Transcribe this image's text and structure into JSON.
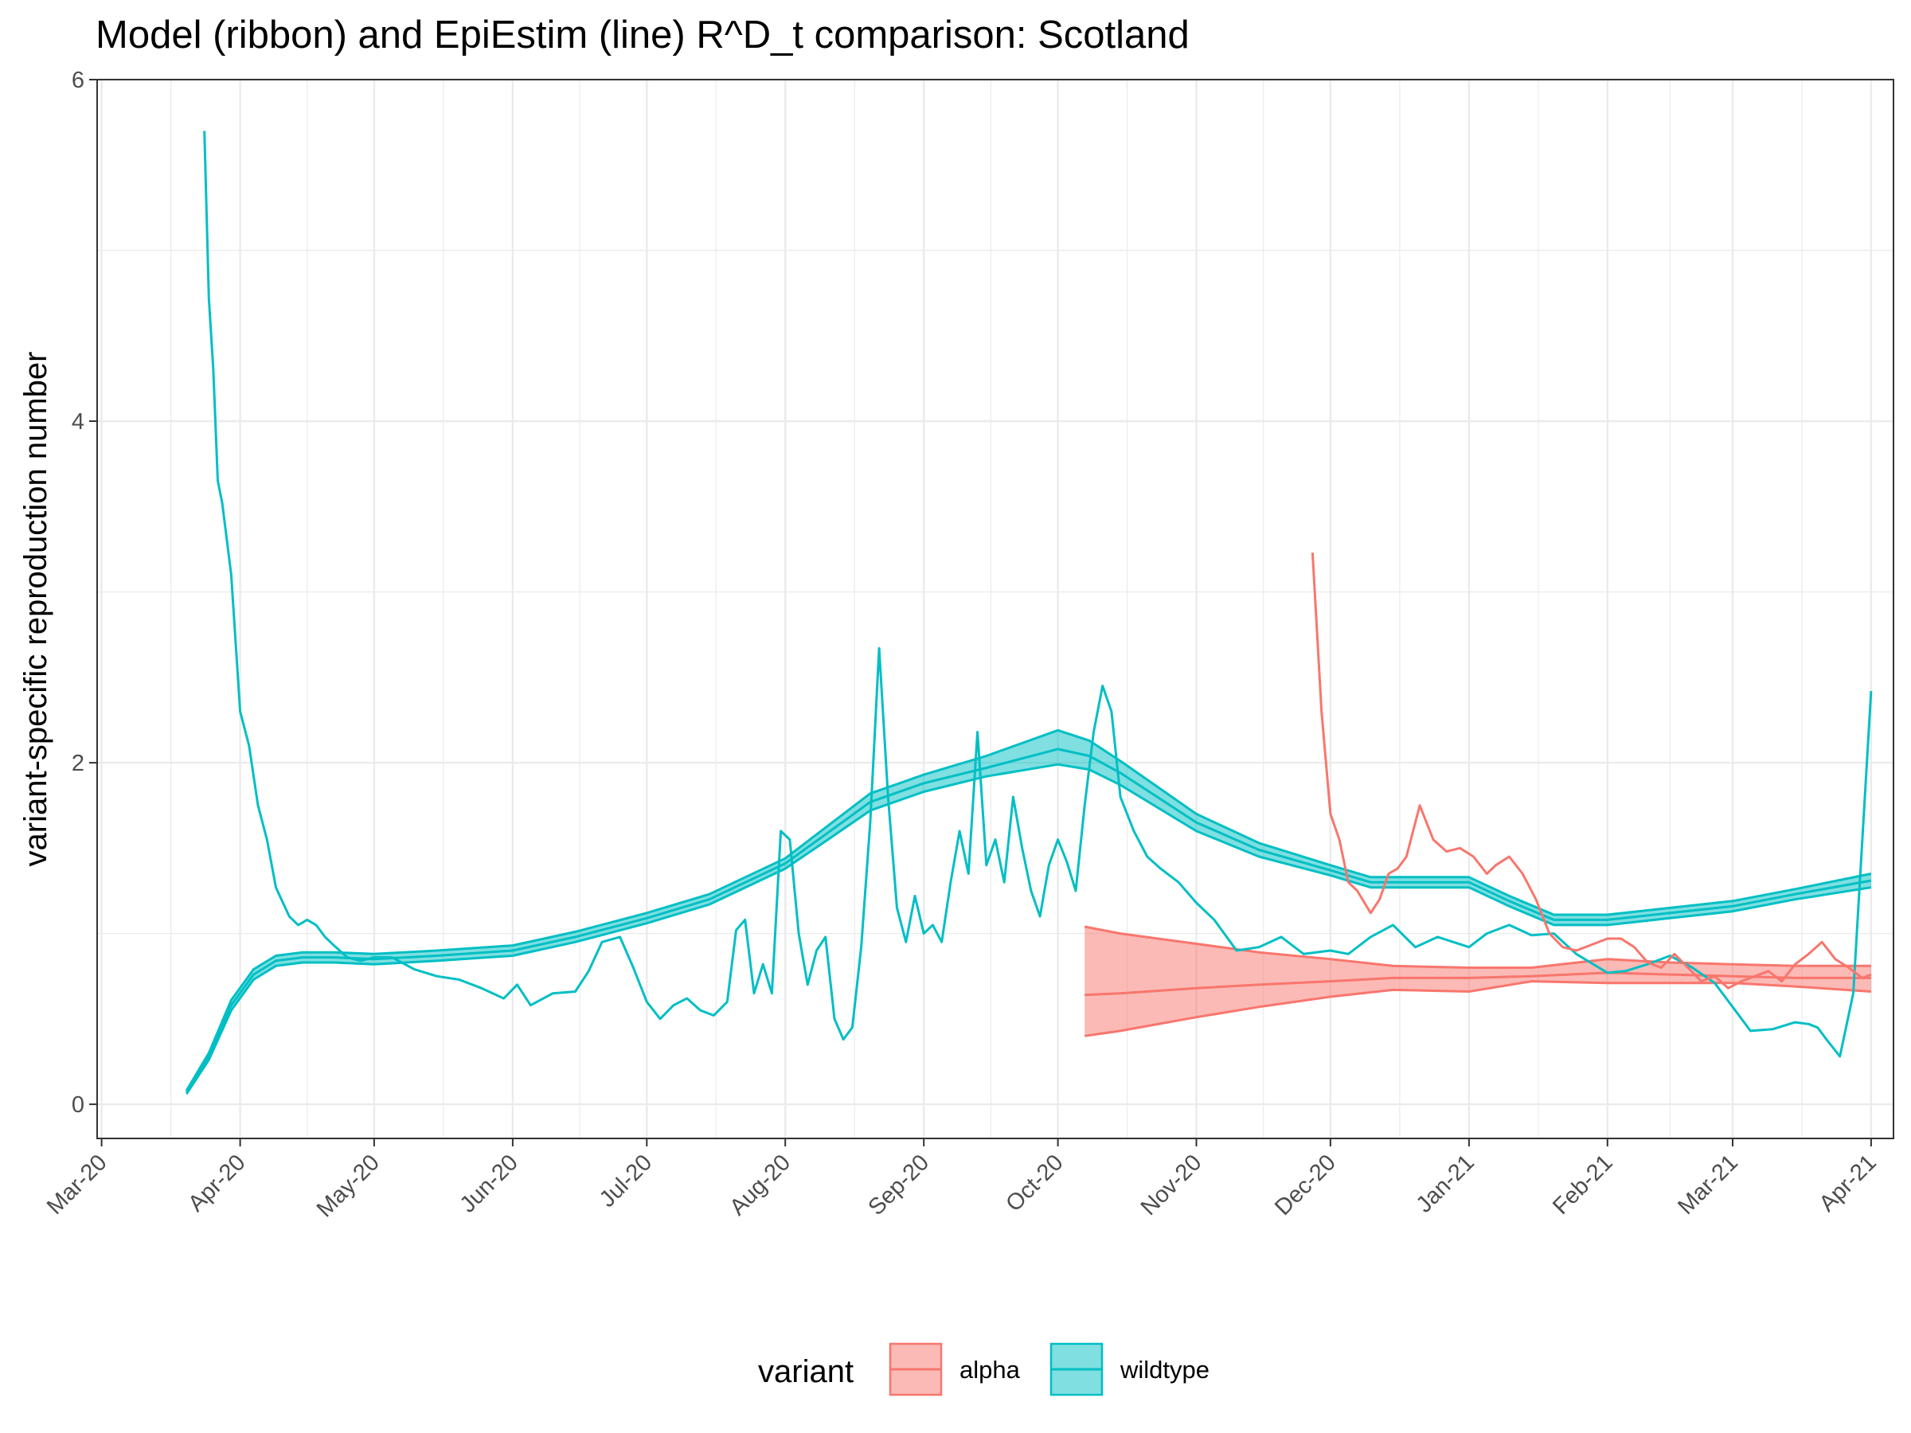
{
  "chart_data": {
    "type": "line",
    "title": "Model (ribbon) and EpiEstim (line) R^D_t comparison: Scotland",
    "xlabel": "",
    "ylabel": "variant-specific reproduction number",
    "x_start": "2020-03-01",
    "x_end": "2021-04-01",
    "xlim": [
      "2020-02-29",
      "2021-04-06"
    ],
    "ylim": [
      -0.2,
      6.0
    ],
    "y_ticks": [
      0,
      2,
      4,
      6
    ],
    "y_tick_labels": [
      "0",
      "2",
      "4",
      "6"
    ],
    "x_ticks": [
      "2020-03-01",
      "2020-04-01",
      "2020-05-01",
      "2020-06-01",
      "2020-07-01",
      "2020-08-01",
      "2020-09-01",
      "2020-10-01",
      "2020-11-01",
      "2020-12-01",
      "2021-01-01",
      "2021-02-01",
      "2021-03-01",
      "2021-04-01"
    ],
    "x_tick_labels": [
      "Mar-20",
      "Apr-20",
      "May-20",
      "Jun-20",
      "Jul-20",
      "Aug-20",
      "Sep-20",
      "Oct-20",
      "Nov-20",
      "Dec-20",
      "Jan-21",
      "Feb-21",
      "Mar-21",
      "Apr-21"
    ],
    "grid": true,
    "legend": {
      "title": "variant",
      "position": "bottom",
      "entries": [
        "alpha",
        "wildtype"
      ]
    },
    "series": [
      {
        "name": "wildtype",
        "color": "#00BFC4",
        "ribbon": {
          "x": [
            "2020-03-20",
            "2020-03-25",
            "2020-03-30",
            "2020-04-04",
            "2020-04-09",
            "2020-04-15",
            "2020-04-22",
            "2020-05-01",
            "2020-05-15",
            "2020-06-01",
            "2020-06-15",
            "2020-07-01",
            "2020-07-15",
            "2020-08-01",
            "2020-08-10",
            "2020-08-20",
            "2020-09-01",
            "2020-09-15",
            "2020-10-01",
            "2020-10-08",
            "2020-10-15",
            "2020-11-01",
            "2020-11-15",
            "2020-12-01",
            "2020-12-10",
            "2020-12-20",
            "2021-01-01",
            "2021-01-10",
            "2021-01-20",
            "2021-02-01",
            "2021-02-15",
            "2021-03-01",
            "2021-03-15",
            "2021-04-01"
          ],
          "mid": [
            0.07,
            0.28,
            0.58,
            0.76,
            0.84,
            0.86,
            0.86,
            0.85,
            0.87,
            0.9,
            0.98,
            1.09,
            1.2,
            1.41,
            1.58,
            1.77,
            1.88,
            1.97,
            2.08,
            2.04,
            1.94,
            1.65,
            1.49,
            1.37,
            1.3,
            1.3,
            1.3,
            1.19,
            1.08,
            1.08,
            1.12,
            1.16,
            1.23,
            1.31
          ],
          "lower": [
            0.06,
            0.26,
            0.55,
            0.73,
            0.81,
            0.83,
            0.83,
            0.82,
            0.84,
            0.87,
            0.95,
            1.06,
            1.17,
            1.38,
            1.54,
            1.72,
            1.83,
            1.92,
            1.99,
            1.96,
            1.87,
            1.6,
            1.45,
            1.34,
            1.27,
            1.27,
            1.27,
            1.16,
            1.05,
            1.05,
            1.09,
            1.13,
            1.2,
            1.27
          ],
          "upper": [
            0.08,
            0.3,
            0.61,
            0.79,
            0.87,
            0.89,
            0.89,
            0.88,
            0.9,
            0.93,
            1.01,
            1.12,
            1.23,
            1.44,
            1.62,
            1.82,
            1.93,
            2.04,
            2.19,
            2.13,
            2.01,
            1.7,
            1.53,
            1.4,
            1.33,
            1.33,
            1.33,
            1.22,
            1.11,
            1.11,
            1.15,
            1.19,
            1.26,
            1.35
          ]
        },
        "epiestim": {
          "x": [
            "2020-03-24",
            "2020-03-25",
            "2020-03-26",
            "2020-03-27",
            "2020-03-28",
            "2020-03-30",
            "2020-04-01",
            "2020-04-03",
            "2020-04-05",
            "2020-04-07",
            "2020-04-09",
            "2020-04-12",
            "2020-04-14",
            "2020-04-16",
            "2020-04-18",
            "2020-04-20",
            "2020-04-22",
            "2020-04-25",
            "2020-04-28",
            "2020-05-01",
            "2020-05-05",
            "2020-05-10",
            "2020-05-15",
            "2020-05-20",
            "2020-05-25",
            "2020-05-30",
            "2020-06-02",
            "2020-06-05",
            "2020-06-10",
            "2020-06-15",
            "2020-06-18",
            "2020-06-21",
            "2020-06-25",
            "2020-06-28",
            "2020-07-01",
            "2020-07-04",
            "2020-07-07",
            "2020-07-10",
            "2020-07-13",
            "2020-07-16",
            "2020-07-19",
            "2020-07-21",
            "2020-07-23",
            "2020-07-25",
            "2020-07-27",
            "2020-07-29",
            "2020-07-31",
            "2020-08-02",
            "2020-08-04",
            "2020-08-06",
            "2020-08-08",
            "2020-08-10",
            "2020-08-12",
            "2020-08-14",
            "2020-08-16",
            "2020-08-18",
            "2020-08-20",
            "2020-08-22",
            "2020-08-24",
            "2020-08-26",
            "2020-08-28",
            "2020-08-30",
            "2020-09-01",
            "2020-09-03",
            "2020-09-05",
            "2020-09-07",
            "2020-09-09",
            "2020-09-11",
            "2020-09-13",
            "2020-09-15",
            "2020-09-17",
            "2020-09-19",
            "2020-09-21",
            "2020-09-23",
            "2020-09-25",
            "2020-09-27",
            "2020-09-29",
            "2020-10-01",
            "2020-10-03",
            "2020-10-05",
            "2020-10-07",
            "2020-10-09",
            "2020-10-11",
            "2020-10-13",
            "2020-10-15",
            "2020-10-18",
            "2020-10-21",
            "2020-10-24",
            "2020-10-28",
            "2020-11-01",
            "2020-11-05",
            "2020-11-10",
            "2020-11-15",
            "2020-11-20",
            "2020-11-25",
            "2020-12-01",
            "2020-12-05",
            "2020-12-10",
            "2020-12-15",
            "2020-12-20",
            "2020-12-25",
            "2021-01-01",
            "2021-01-05",
            "2021-01-10",
            "2021-01-15",
            "2021-01-20",
            "2021-01-25",
            "2021-02-01",
            "2021-02-05",
            "2021-02-10",
            "2021-02-15",
            "2021-02-20",
            "2021-02-25",
            "2021-03-01",
            "2021-03-05",
            "2021-03-10",
            "2021-03-15",
            "2021-03-18",
            "2021-03-20",
            "2021-03-22",
            "2021-03-25",
            "2021-03-28",
            "2021-04-01"
          ],
          "y": [
            5.7,
            4.72,
            4.3,
            3.65,
            3.52,
            3.1,
            2.3,
            2.1,
            1.75,
            1.55,
            1.27,
            1.1,
            1.05,
            1.08,
            1.05,
            0.98,
            0.93,
            0.86,
            0.84,
            0.86,
            0.86,
            0.79,
            0.75,
            0.73,
            0.68,
            0.62,
            0.7,
            0.58,
            0.65,
            0.66,
            0.78,
            0.95,
            0.98,
            0.8,
            0.6,
            0.5,
            0.58,
            0.62,
            0.55,
            0.52,
            0.6,
            1.02,
            1.08,
            0.65,
            0.82,
            0.65,
            1.6,
            1.55,
            1.0,
            0.7,
            0.9,
            0.98,
            0.5,
            0.38,
            0.45,
            0.92,
            1.65,
            2.67,
            1.8,
            1.15,
            0.95,
            1.22,
            1.0,
            1.05,
            0.95,
            1.3,
            1.6,
            1.35,
            2.18,
            1.4,
            1.55,
            1.3,
            1.8,
            1.5,
            1.25,
            1.1,
            1.4,
            1.55,
            1.42,
            1.25,
            1.75,
            2.18,
            2.45,
            2.3,
            1.8,
            1.6,
            1.45,
            1.38,
            1.3,
            1.18,
            1.08,
            0.9,
            0.92,
            0.98,
            0.88,
            0.9,
            0.88,
            0.98,
            1.05,
            0.92,
            0.98,
            0.92,
            1.0,
            1.05,
            0.99,
            1.0,
            0.88,
            0.77,
            0.78,
            0.82,
            0.87,
            0.8,
            0.71,
            0.57,
            0.43,
            0.44,
            0.48,
            0.47,
            0.45,
            0.38,
            0.28,
            0.65,
            2.42
          ]
        }
      },
      {
        "name": "alpha",
        "color": "#F8766D",
        "ribbon": {
          "x": [
            "2020-10-07",
            "2020-10-15",
            "2020-11-01",
            "2020-11-15",
            "2020-12-01",
            "2020-12-15",
            "2021-01-01",
            "2021-01-15",
            "2021-02-01",
            "2021-02-15",
            "2021-03-01",
            "2021-03-15",
            "2021-04-01"
          ],
          "mid": [
            0.64,
            0.65,
            0.68,
            0.7,
            0.72,
            0.74,
            0.74,
            0.75,
            0.77,
            0.76,
            0.75,
            0.74,
            0.74
          ],
          "lower": [
            0.4,
            0.43,
            0.51,
            0.57,
            0.63,
            0.67,
            0.66,
            0.72,
            0.71,
            0.71,
            0.71,
            0.69,
            0.66
          ],
          "upper": [
            1.04,
            1.0,
            0.94,
            0.89,
            0.85,
            0.81,
            0.8,
            0.8,
            0.85,
            0.83,
            0.82,
            0.81,
            0.81
          ]
        },
        "epiestim": {
          "x": [
            "2020-11-27",
            "2020-11-29",
            "2020-12-01",
            "2020-12-03",
            "2020-12-05",
            "2020-12-07",
            "2020-12-10",
            "2020-12-12",
            "2020-12-14",
            "2020-12-16",
            "2020-12-18",
            "2020-12-21",
            "2020-12-24",
            "2020-12-27",
            "2020-12-30",
            "2021-01-02",
            "2021-01-05",
            "2021-01-07",
            "2021-01-10",
            "2021-01-13",
            "2021-01-16",
            "2021-01-19",
            "2021-01-22",
            "2021-01-25",
            "2021-01-28",
            "2021-02-01",
            "2021-02-04",
            "2021-02-07",
            "2021-02-10",
            "2021-02-13",
            "2021-02-16",
            "2021-02-19",
            "2021-02-22",
            "2021-02-25",
            "2021-02-28",
            "2021-03-03",
            "2021-03-06",
            "2021-03-09",
            "2021-03-12",
            "2021-03-15",
            "2021-03-18",
            "2021-03-21",
            "2021-03-24",
            "2021-03-27",
            "2021-03-30",
            "2021-04-01"
          ],
          "y": [
            3.23,
            2.3,
            1.7,
            1.55,
            1.3,
            1.25,
            1.12,
            1.2,
            1.35,
            1.38,
            1.45,
            1.75,
            1.55,
            1.48,
            1.5,
            1.45,
            1.35,
            1.4,
            1.45,
            1.35,
            1.2,
            1.0,
            0.92,
            0.9,
            0.93,
            0.97,
            0.97,
            0.92,
            0.83,
            0.8,
            0.88,
            0.8,
            0.72,
            0.75,
            0.68,
            0.72,
            0.75,
            0.78,
            0.72,
            0.82,
            0.88,
            0.95,
            0.85,
            0.8,
            0.74,
            0.76
          ]
        }
      }
    ]
  }
}
